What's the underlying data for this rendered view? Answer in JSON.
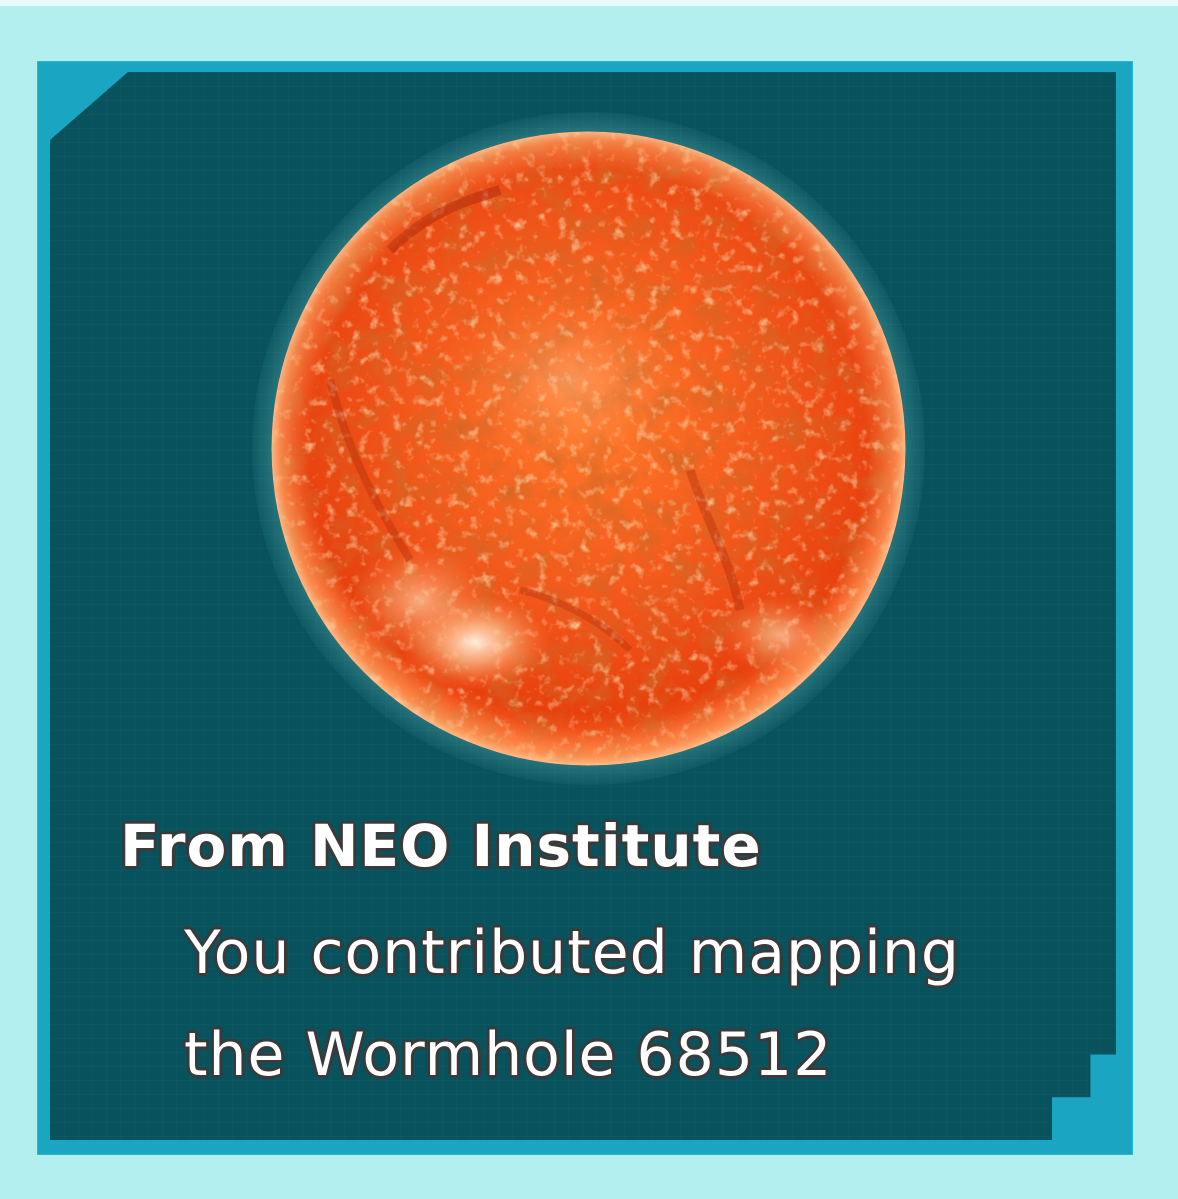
{
  "card": {
    "title": "From NEO Institute",
    "message_line1": "You contributed mapping",
    "message_line2": "the Wormhole 68512"
  },
  "image": {
    "subject": "red-orange-star"
  },
  "colors": {
    "background": "#b3efef",
    "frame": "#1aa5c2",
    "panel": "#07525c",
    "star_base": "#f04a10",
    "text": "#ffffff",
    "text_outline": "#3a3a3a"
  }
}
